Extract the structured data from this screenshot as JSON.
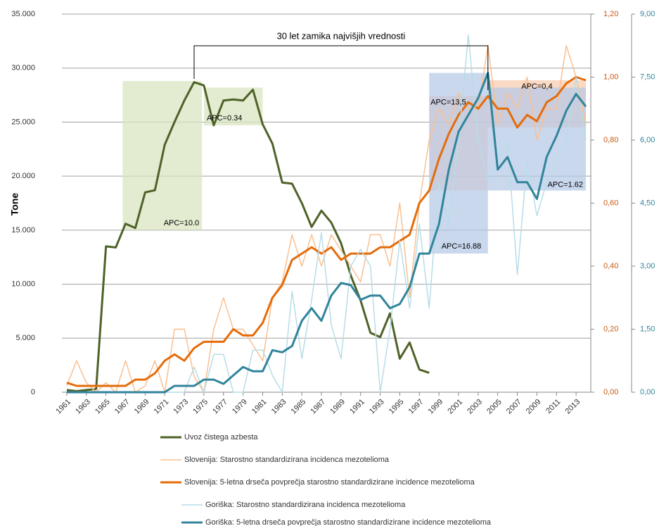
{
  "chart_data": {
    "type": "line",
    "ylabel": "Tone",
    "bracket": {
      "label": "30 let zamika najvišjih vrednosti",
      "from": 1974,
      "to": 2004
    },
    "x": [
      1961,
      1962,
      1963,
      1964,
      1965,
      1966,
      1967,
      1968,
      1969,
      1970,
      1971,
      1972,
      1973,
      1974,
      1975,
      1976,
      1977,
      1978,
      1979,
      1980,
      1981,
      1982,
      1983,
      1984,
      1985,
      1986,
      1987,
      1988,
      1989,
      1990,
      1991,
      1992,
      1993,
      1994,
      1995,
      1996,
      1997,
      1998,
      1999,
      2000,
      2001,
      2002,
      2003,
      2004,
      2005,
      2006,
      2007,
      2008,
      2009,
      2010,
      2011,
      2012,
      2013,
      2014
    ],
    "xlim": [
      1960.5,
      2014.5
    ],
    "xticks": [
      1961,
      1963,
      1965,
      1967,
      1969,
      1971,
      1973,
      1975,
      1977,
      1979,
      1981,
      1983,
      1985,
      1987,
      1989,
      1991,
      1993,
      1995,
      1997,
      1999,
      2001,
      2003,
      2005,
      2007,
      2009,
      2011,
      2013
    ],
    "ylim": [
      0,
      35000
    ],
    "yticks": [
      {
        "value": 0,
        "label": "0"
      },
      {
        "value": 5000,
        "label": "5.000"
      },
      {
        "value": 10000,
        "label": "10.000"
      },
      {
        "value": 15000,
        "label": "15.000"
      },
      {
        "value": 20000,
        "label": "20.000"
      },
      {
        "value": 25000,
        "label": "25.000"
      },
      {
        "value": 30000,
        "label": "30.000"
      },
      {
        "value": 35000,
        "label": "35.000"
      }
    ],
    "y2lim": [
      0,
      1.2
    ],
    "y2ticks": [
      {
        "value": 0,
        "label": "0,00"
      },
      {
        "value": 0.2,
        "label": "0,20"
      },
      {
        "value": 0.4,
        "label": "0,40"
      },
      {
        "value": 0.6,
        "label": "0,60"
      },
      {
        "value": 0.8,
        "label": "0,80"
      },
      {
        "value": 1.0,
        "label": "1,00"
      },
      {
        "value": 1.2,
        "label": "1,20"
      }
    ],
    "y2color": "#c55a11",
    "y3lim": [
      0,
      9
    ],
    "y3ticks": [
      {
        "value": 0,
        "label": "0,00"
      },
      {
        "value": 1.5,
        "label": "1,50"
      },
      {
        "value": 3,
        "label": "3,00"
      },
      {
        "value": 4.5,
        "label": "4,50"
      },
      {
        "value": 6,
        "label": "6,00"
      },
      {
        "value": 7.5,
        "label": "7,50"
      },
      {
        "value": 9,
        "label": "9,00"
      }
    ],
    "y3color": "#31849b",
    "grid": true,
    "series": [
      {
        "name": "Uvoz čistega azbesta",
        "color": "#4f6228",
        "width": 3,
        "axis": "y",
        "values": [
          200,
          100,
          200,
          300,
          13500,
          13400,
          15600,
          15200,
          18500,
          18700,
          22900,
          25000,
          27000,
          28700,
          28400,
          24700,
          27000,
          27100,
          27000,
          28000,
          24800,
          23000,
          19400,
          19300,
          17500,
          15300,
          16800,
          15700,
          13800,
          10800,
          8500,
          5500,
          5100,
          7300,
          3100,
          4600,
          2100,
          1800,
          null,
          null,
          null,
          null,
          null,
          null,
          null,
          null,
          null,
          null,
          null,
          null,
          null,
          null,
          null,
          null
        ]
      },
      {
        "name": "Slovenija: Starostno standardizirana incidenca mezotelioma",
        "color": "#fac090",
        "width": 1.5,
        "axis": "y2",
        "values": [
          0.02,
          0.1,
          0.03,
          0,
          0.03,
          0,
          0.1,
          0,
          0.02,
          0.1,
          0,
          0.2,
          0.2,
          0.05,
          0,
          0.2,
          0.3,
          0.2,
          0.2,
          0.15,
          0.1,
          0.3,
          0.35,
          0.5,
          0.4,
          0.5,
          0.4,
          0.5,
          0.45,
          0.4,
          0.35,
          0.5,
          0.5,
          0.4,
          0.6,
          0.3,
          0.6,
          0.8,
          0.9,
          0.85,
          0.95,
          0.9,
          0.9,
          1.1,
          0.85,
          0.95,
          0.9,
          1.0,
          0.8,
          0.9,
          0.9,
          1.1,
          1.0,
          0.85
        ]
      },
      {
        "name": "Slovenija: 5-letna drseča povprečja starostno standardizirane incidence mezotelioma",
        "color": "#e46c0a",
        "width": 3,
        "axis": "y2",
        "values": [
          0.03,
          0.02,
          0.02,
          0.02,
          0.02,
          0.02,
          0.02,
          0.04,
          0.04,
          0.06,
          0.1,
          0.12,
          0.1,
          0.14,
          0.16,
          0.16,
          0.16,
          0.2,
          0.18,
          0.18,
          0.22,
          0.3,
          0.34,
          0.42,
          0.44,
          0.46,
          0.44,
          0.46,
          0.42,
          0.44,
          0.44,
          0.44,
          0.46,
          0.46,
          0.48,
          0.5,
          0.6,
          0.64,
          0.74,
          0.82,
          0.88,
          0.92,
          0.9,
          0.94,
          0.9,
          0.9,
          0.84,
          0.88,
          0.86,
          0.92,
          0.94,
          0.98,
          1.0,
          0.99
        ]
      },
      {
        "name": "Goriška: Starostno standardizirana incidenca mezotelioma",
        "color": "#b7dde8",
        "width": 1.5,
        "axis": "y3",
        "values": [
          0,
          0,
          0,
          0,
          0,
          0,
          0,
          0,
          0,
          0,
          0,
          0,
          0,
          0.6,
          0,
          0.9,
          0.9,
          0,
          0,
          1.0,
          1.0,
          0.4,
          0,
          2.4,
          0.8,
          2.2,
          3.8,
          1.6,
          0.8,
          3.0,
          3.4,
          3.0,
          0,
          1.5,
          3.6,
          2.0,
          4.0,
          2.0,
          5.0,
          4.0,
          6.0,
          8.5,
          6.0,
          5.0,
          5.5,
          6.0,
          2.8,
          5.5,
          4.2,
          5.0,
          5.5,
          6.0,
          7.5,
          6.0
        ]
      },
      {
        "name": "Goriška: 5-letna drseča povprečja starostno standardizirane incidence mezotelioma",
        "color": "#31849b",
        "width": 3,
        "axis": "y3",
        "values": [
          0,
          0,
          0,
          0,
          0,
          0,
          0,
          0,
          0,
          0,
          0,
          0.15,
          0.15,
          0.15,
          0.3,
          0.3,
          0.2,
          0.4,
          0.6,
          0.5,
          0.5,
          1.0,
          0.95,
          1.1,
          1.7,
          2.0,
          1.7,
          2.3,
          2.6,
          2.55,
          2.2,
          2.3,
          2.3,
          2.0,
          2.1,
          2.5,
          3.3,
          3.3,
          4.0,
          5.3,
          6.2,
          6.6,
          7.0,
          7.6,
          5.3,
          5.6,
          5.0,
          5.0,
          4.6,
          5.6,
          6.1,
          6.7,
          7.1,
          6.8
        ]
      }
    ],
    "annotations": [
      {
        "label": "APC=10.0",
        "axis": "y",
        "color": "#d7e4bd",
        "x0": 1966.7,
        "x1": 1974.8,
        "y0": 15000,
        "y1": 28800
      },
      {
        "label": "APC=0.34",
        "axis": "y",
        "color": "#d7e4bd",
        "x0": 1975,
        "x1": 1981,
        "y0": 24700,
        "y1": 28200
      },
      {
        "label": "APC=13,5",
        "axis": "y2",
        "color": "#f8cbad",
        "x0": 1998,
        "x1": 2004,
        "y0": 0.64,
        "y1": 0.94
      },
      {
        "label": "APC=0,4",
        "axis": "y2",
        "color": "#f8cbad",
        "x0": 2004,
        "x1": 2014,
        "y0": 0.84,
        "y1": 0.99
      },
      {
        "label": "APC=16.88",
        "axis": "y3",
        "color": "#b4c7e7",
        "x0": 1998,
        "x1": 2004,
        "y0": 3.3,
        "y1": 7.6
      },
      {
        "label": "APC=1.62",
        "axis": "y3",
        "color": "#b4c7e7",
        "x0": 2004,
        "x1": 2014,
        "y0": 4.8,
        "y1": 7.25
      }
    ]
  }
}
